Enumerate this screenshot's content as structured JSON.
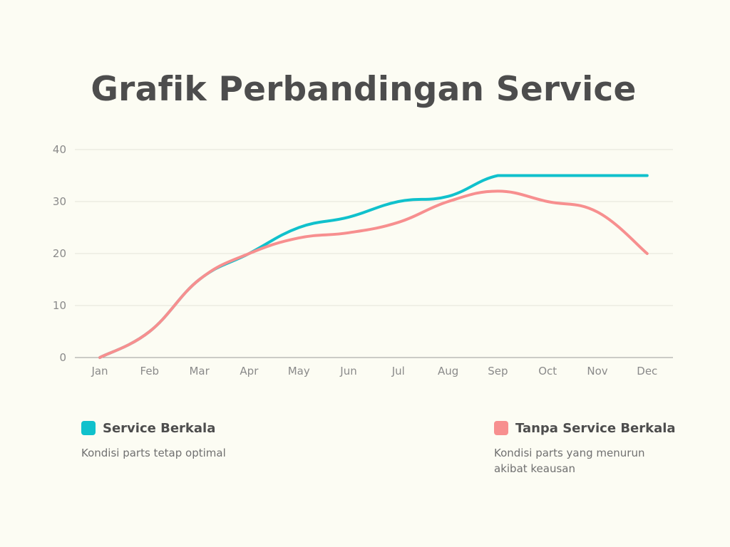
{
  "chart_data": {
    "type": "line",
    "title": "Grafik Perbandingan Service",
    "categories": [
      "Jan",
      "Feb",
      "Mar",
      "Apr",
      "May",
      "Jun",
      "Jul",
      "Aug",
      "Sep",
      "Oct",
      "Nov",
      "Dec"
    ],
    "y_ticks": [
      "0",
      "10",
      "20",
      "30",
      "40"
    ],
    "ylim": [
      0,
      40
    ],
    "grid": true,
    "legend_position": "bottom",
    "series": [
      {
        "name": "Service Berkala",
        "description": "Kondisi parts tetap optimal",
        "color": "#10c1cc",
        "values": [
          0,
          5,
          15,
          20,
          25,
          27,
          30,
          31,
          35,
          35,
          35,
          35
        ]
      },
      {
        "name": "Tanpa Service Berkala",
        "description": "Kondisi parts yang menurun akibat keausan",
        "color": "#f78f8f",
        "values": [
          0,
          5,
          15,
          20,
          23,
          24,
          26,
          30,
          32,
          30,
          28,
          20
        ]
      }
    ]
  }
}
